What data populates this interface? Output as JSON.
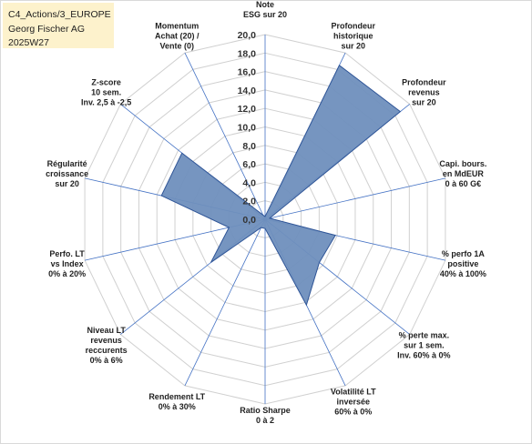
{
  "title_box": {
    "line1": "C4_Actions/3_EUROPE",
    "line2": "Georg Fischer AG",
    "line3": "2025W27"
  },
  "chart_data": {
    "type": "radar",
    "axes": [
      [
        "Note",
        "ESG sur 20"
      ],
      [
        "Profondeur",
        "historique",
        "sur 20"
      ],
      [
        "Profondeur",
        "revenus",
        "sur 20"
      ],
      [
        "Capi. bours.",
        "en MdEUR",
        "0 à 60 G€"
      ],
      [
        "% perfo 1A",
        "positive",
        "40% à 100%"
      ],
      [
        "% perte max.",
        "sur 1 sem.",
        "Inv. 60% à 0%"
      ],
      [
        "Volatilité LT",
        "inversée",
        "60% à 0%"
      ],
      [
        "Ratio Sharpe",
        "0 à 2"
      ],
      [
        "Rendement LT",
        "0% à 30%"
      ],
      [
        "Niveau LT",
        "revenus",
        "reccurents",
        "0% à 6%"
      ],
      [
        "Perfo. LT",
        "vs Index",
        "0% à 20%"
      ],
      [
        "Régularité",
        "croissance",
        "sur 20"
      ],
      [
        "Z-score",
        "10 sem.",
        "Inv. 2,5 à -2,5"
      ],
      [
        "Momentum",
        "Achat (20) /",
        "Vente (0)"
      ]
    ],
    "values": [
      0.3,
      18.5,
      18.7,
      0.5,
      7.8,
      7.5,
      10.3,
      1.0,
      1.0,
      7.5,
      4.0,
      11.5,
      11.5,
      0.5
    ],
    "rlim": [
      0,
      20
    ],
    "ticks": [
      "0,0",
      "2,0",
      "4,0",
      "6,0",
      "8,0",
      "10,0",
      "12,0",
      "14,0",
      "16,0",
      "18,0",
      "20,0"
    ],
    "colors": {
      "fill": "#6f8fbd",
      "line": "#2f5597",
      "grid": "#d0d0d0",
      "spoke": "#4472c4"
    }
  }
}
